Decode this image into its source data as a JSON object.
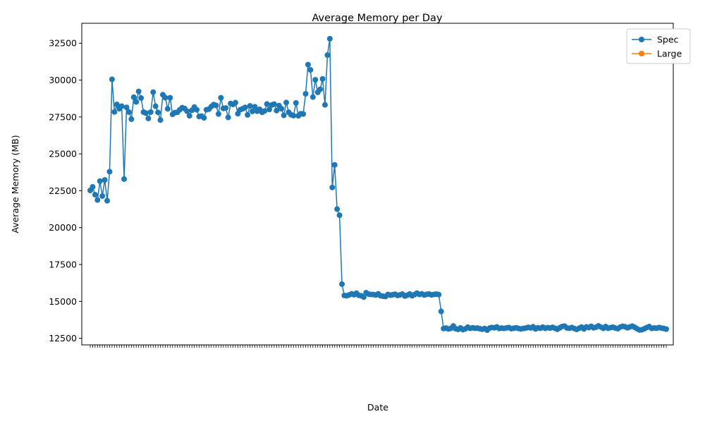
{
  "chart_data": {
    "type": "line",
    "title": "Average Memory per Day",
    "xlabel": "Date",
    "ylabel": "Average Memory (MB)",
    "ylim": [
      12050,
      33850
    ],
    "yticks": [
      12500,
      15000,
      17500,
      20000,
      22500,
      25000,
      27500,
      30000,
      32500
    ],
    "legend": "top-right",
    "grid": false,
    "series": [
      {
        "name": "Spec",
        "color": "#1f77b4",
        "marker": "circle",
        "values": [
          22520,
          22760,
          22230,
          21870,
          23150,
          22140,
          23230,
          21820,
          23790,
          30050,
          27840,
          28350,
          28060,
          28230,
          23290,
          28150,
          27830,
          27350,
          28840,
          28520,
          29230,
          28780,
          27830,
          27760,
          27400,
          27830,
          29180,
          28230,
          27810,
          27290,
          29010,
          28810,
          28050,
          28800,
          27680,
          27790,
          27820,
          27990,
          28130,
          28070,
          27890,
          27580,
          27950,
          28170,
          27990,
          27530,
          27560,
          27440,
          27990,
          28030,
          28200,
          28340,
          28280,
          27700,
          28800,
          28080,
          28110,
          27470,
          28410,
          28350,
          28470,
          27720,
          27990,
          28060,
          28150,
          27640,
          28250,
          27880,
          28190,
          27890,
          28020,
          27820,
          27900,
          28380,
          28010,
          28310,
          28370,
          27930,
          28270,
          28060,
          27610,
          28480,
          27820,
          27650,
          27590,
          28450,
          27580,
          27720,
          27700,
          29070,
          31050,
          30690,
          28850,
          30020,
          29170,
          29370,
          30080,
          28320,
          31690,
          32800,
          22720,
          24250,
          21250,
          20840,
          16170,
          15400,
          15380,
          15440,
          15510,
          15450,
          15560,
          15410,
          15380,
          15290,
          15590,
          15490,
          15470,
          15460,
          15430,
          15510,
          15380,
          15350,
          15330,
          15470,
          15420,
          15450,
          15480,
          15400,
          15440,
          15490,
          15360,
          15420,
          15500,
          15380,
          15460,
          15560,
          15470,
          15510,
          15430,
          15480,
          15500,
          15440,
          15470,
          15490,
          15460,
          14320,
          13160,
          13190,
          13130,
          13170,
          13330,
          13150,
          13100,
          13200,
          13080,
          13140,
          13250,
          13170,
          13210,
          13180,
          13190,
          13150,
          13110,
          13160,
          13050,
          13190,
          13230,
          13210,
          13270,
          13160,
          13190,
          13170,
          13200,
          13230,
          13150,
          13180,
          13210,
          13160,
          13130,
          13170,
          13190,
          13240,
          13200,
          13280,
          13130,
          13210,
          13180,
          13260,
          13170,
          13220,
          13190,
          13240,
          13180,
          13110,
          13210,
          13300,
          13320,
          13200,
          13180,
          13230,
          13160,
          13100,
          13180,
          13260,
          13130,
          13270,
          13220,
          13310,
          13210,
          13250,
          13340,
          13260,
          13170,
          13290,
          13180,
          13220,
          13250,
          13190,
          13150,
          13260,
          13310,
          13280,
          13210,
          13270,
          13320,
          13240,
          13140,
          13060,
          13080,
          13150,
          13230,
          13290,
          13170,
          13200,
          13180,
          13230,
          13190,
          13160,
          13120
        ]
      },
      {
        "name": "Large",
        "color": "#ff7f0e",
        "marker": "circle",
        "values": []
      }
    ]
  }
}
